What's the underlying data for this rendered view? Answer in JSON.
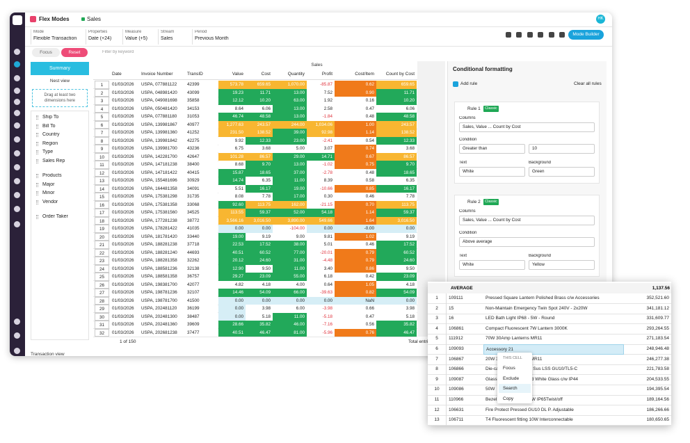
{
  "app": {
    "title": "Flex Modes",
    "view": "Sales",
    "avatar": "HK",
    "mode_builder": "Mode Builder"
  },
  "toolbar": [
    {
      "label": "Mode",
      "value": "Flexible Transaction"
    },
    {
      "label": "Properties",
      "value": "Date (+24)"
    },
    {
      "label": "Measure",
      "value": "Value (+5)"
    },
    {
      "label": "Stream",
      "value": "Sales"
    },
    {
      "label": "Period",
      "value": "Previous Month"
    }
  ],
  "filters": {
    "focus": "Focus",
    "reset": "Reset",
    "search_placeholder": "Filter by keyword"
  },
  "left_panel": {
    "summary": "Summary",
    "nest_view": "Nest view",
    "drop_hint": "Drag at least two dimensions here",
    "groups": [
      [
        "Ship To",
        "Bill To",
        "Country",
        "Region",
        "Type",
        "Sales Rep"
      ],
      [
        "Products",
        "Major",
        "Minor",
        "Vendor"
      ],
      [
        "Order Taker"
      ]
    ],
    "footer_tab": "Transaction view"
  },
  "grid": {
    "group_header": "Sales",
    "columns": [
      "Date",
      "Invoice Number",
      "TransID",
      "Value",
      "Cost",
      "Quantity",
      "Profit",
      "Cost/Item",
      "Count by Cost"
    ],
    "rows": [
      {
        "cells": [
          "1",
          "01/03/2026",
          "USPA, 077881122",
          "42399",
          "573.78",
          "659.65",
          "1,070.00",
          "-85.87",
          "0.62",
          "659.65"
        ],
        "colors": [
          "#f8b631",
          "#f8b631",
          "#f8b631",
          "#ffffff",
          "#f07a1a",
          "#f8b631"
        ]
      },
      {
        "cells": [
          "2",
          "01/03/2026",
          "USPA, 048981420",
          "43099",
          "19.23",
          "11.71",
          "13.00",
          "7.52",
          "0.90",
          "11.71"
        ],
        "colors": [
          "#22a95a",
          "#22a95a",
          "#22a95a",
          "#ffffff",
          "#f07a1a",
          "#22a95a"
        ]
      },
      {
        "cells": [
          "3",
          "01/03/2026",
          "USPA, 049081698",
          "35858",
          "12.12",
          "10.20",
          "63.00",
          "1.92",
          "0.16",
          "10.20"
        ],
        "colors": [
          "#22a95a",
          "#22a95a",
          "#22a95a",
          "#ffffff",
          "#ffffff",
          "#22a95a"
        ]
      },
      {
        "cells": [
          "4",
          "01/03/2026",
          "USPA, 050481420",
          "34153",
          "8.64",
          "6.06",
          "13.00",
          "2.58",
          "0.47",
          "6.06"
        ],
        "colors": [
          "#ffffff",
          "#ffffff",
          "#22a95a",
          "#ffffff",
          "#ffffff",
          "#ffffff"
        ]
      },
      {
        "cells": [
          "5",
          "01/03/2026",
          "USPA, 077881180",
          "31053",
          "46.74",
          "48.58",
          "13.00",
          "-1.84",
          "0.48",
          "48.58"
        ],
        "colors": [
          "#22a95a",
          "#22a95a",
          "#22a95a",
          "#ffffff",
          "#ffffff",
          "#22a95a"
        ]
      },
      {
        "cells": [
          "6",
          "01/03/2026",
          "USPA, 139981867",
          "40977",
          "1,277.63",
          "243.57",
          "244.00",
          "1,034.06",
          "1.00",
          "243.57"
        ],
        "colors": [
          "#f8b631",
          "#f8b631",
          "#f8b631",
          "#f8b631",
          "#f07a1a",
          "#f8b631"
        ]
      },
      {
        "cells": [
          "7",
          "01/03/2026",
          "USPA, 139981360",
          "41252",
          "231.50",
          "138.52",
          "39.00",
          "92.98",
          "1.14",
          "138.52"
        ],
        "colors": [
          "#f8b631",
          "#f8b631",
          "#22a95a",
          "#f8b631",
          "#f07a1a",
          "#f8b631"
        ]
      },
      {
        "cells": [
          "8",
          "01/03/2026",
          "USPA, 139981842",
          "42275",
          "9.92",
          "12.33",
          "23.00",
          "-2.41",
          "0.54",
          "12.33"
        ],
        "colors": [
          "#ffffff",
          "#22a95a",
          "#22a95a",
          "#ffffff",
          "#ffffff",
          "#22a95a"
        ]
      },
      {
        "cells": [
          "9",
          "01/03/2026",
          "USPA, 139981700",
          "43236",
          "6.75",
          "3.68",
          "5.00",
          "3.07",
          "0.74",
          "3.68"
        ],
        "colors": [
          "#ffffff",
          "#ffffff",
          "#ffffff",
          "#ffffff",
          "#f07a1a",
          "#ffffff"
        ]
      },
      {
        "cells": [
          "10",
          "01/03/2026",
          "USPA, 142281700",
          "42647",
          "101.28",
          "86.57",
          "29.00",
          "14.71",
          "0.67",
          "86.57"
        ],
        "colors": [
          "#f8b631",
          "#f8b631",
          "#22a95a",
          "#22a95a",
          "#f07a1a",
          "#f8b631"
        ]
      },
      {
        "cells": [
          "11",
          "01/03/2026",
          "USPA, 147181238",
          "38400",
          "8.68",
          "9.70",
          "13.00",
          "-1.02",
          "0.75",
          "9.70"
        ],
        "colors": [
          "#ffffff",
          "#22a95a",
          "#22a95a",
          "#ffffff",
          "#f07a1a",
          "#22a95a"
        ]
      },
      {
        "cells": [
          "12",
          "01/03/2026",
          "USPA, 147181422",
          "40415",
          "15.87",
          "18.65",
          "37.00",
          "-2.78",
          "0.48",
          "18.65"
        ],
        "colors": [
          "#22a95a",
          "#22a95a",
          "#22a95a",
          "#ffffff",
          "#ffffff",
          "#22a95a"
        ]
      },
      {
        "cells": [
          "13",
          "01/03/2026",
          "USPA, 155481696",
          "30929",
          "14.74",
          "6.35",
          "11.00",
          "8.39",
          "0.58",
          "6.35"
        ],
        "colors": [
          "#22a95a",
          "#ffffff",
          "#22a95a",
          "#ffffff",
          "#ffffff",
          "#ffffff"
        ]
      },
      {
        "cells": [
          "14",
          "01/03/2026",
          "USPA, 164481358",
          "34091",
          "5.51",
          "16.17",
          "19.00",
          "-10.66",
          "0.85",
          "16.17"
        ],
        "colors": [
          "#ffffff",
          "#22a95a",
          "#22a95a",
          "#ffffff",
          "#f07a1a",
          "#22a95a"
        ]
      },
      {
        "cells": [
          "15",
          "01/03/2026",
          "USPA, 175381298",
          "31735",
          "8.08",
          "7.78",
          "17.00",
          "0.30",
          "0.46",
          "7.78"
        ],
        "colors": [
          "#ffffff",
          "#ffffff",
          "#22a95a",
          "#ffffff",
          "#ffffff",
          "#ffffff"
        ]
      },
      {
        "cells": [
          "16",
          "01/03/2026",
          "USPA, 175381358",
          "33068",
          "92.60",
          "113.75",
          "162.00",
          "-21.15",
          "0.70",
          "113.75"
        ],
        "colors": [
          "#22a95a",
          "#f8b631",
          "#f8b631",
          "#ffffff",
          "#f07a1a",
          "#f8b631"
        ]
      },
      {
        "cells": [
          "17",
          "01/03/2026",
          "USPA, 175381560",
          "34525",
          "113.55",
          "59.37",
          "52.00",
          "54.18",
          "1.14",
          "59.37"
        ],
        "colors": [
          "#f8b631",
          "#22a95a",
          "#22a95a",
          "#22a95a",
          "#f07a1a",
          "#22a95a"
        ]
      },
      {
        "cells": [
          "18",
          "01/03/2026",
          "USPA, 177281238",
          "38772",
          "3,566.16",
          "3,016.50",
          "3,890.00",
          "549.66",
          "1.64",
          "3,016.50"
        ],
        "colors": [
          "#f8b631",
          "#f8b631",
          "#f8b631",
          "#f8b631",
          "#f07a1a",
          "#f8b631"
        ]
      },
      {
        "cells": [
          "19",
          "01/03/2026",
          "USPA, 178281422",
          "41035",
          "0.00",
          "0.00",
          "-104.00",
          "0.00",
          "-0.00",
          "0.00"
        ],
        "colors": [
          "#d6eef6",
          "#d6eef6",
          "#ffffff",
          "#d6eef6",
          "#d6eef6",
          "#d6eef6"
        ]
      },
      {
        "cells": [
          "20",
          "01/03/2026",
          "USPA, 181781420",
          "33440",
          "19.00",
          "9.19",
          "9.00",
          "9.81",
          "1.02",
          "9.19"
        ],
        "colors": [
          "#22a95a",
          "#ffffff",
          "#ffffff",
          "#ffffff",
          "#f07a1a",
          "#ffffff"
        ]
      },
      {
        "cells": [
          "21",
          "01/03/2026",
          "USPA, 188281238",
          "37718",
          "22.53",
          "17.52",
          "38.00",
          "5.01",
          "0.46",
          "17.52"
        ],
        "colors": [
          "#22a95a",
          "#22a95a",
          "#22a95a",
          "#ffffff",
          "#ffffff",
          "#22a95a"
        ]
      },
      {
        "cells": [
          "22",
          "01/03/2026",
          "USPA, 188281240",
          "44693",
          "40.51",
          "60.52",
          "77.00",
          "-20.01",
          "0.79",
          "60.52"
        ],
        "colors": [
          "#22a95a",
          "#22a95a",
          "#22a95a",
          "#ffffff",
          "#f07a1a",
          "#22a95a"
        ]
      },
      {
        "cells": [
          "23",
          "01/03/2026",
          "USPA, 188281358",
          "32262",
          "20.12",
          "24.60",
          "31.00",
          "-4.48",
          "0.79",
          "24.60"
        ],
        "colors": [
          "#22a95a",
          "#22a95a",
          "#22a95a",
          "#ffffff",
          "#f07a1a",
          "#22a95a"
        ]
      },
      {
        "cells": [
          "24",
          "01/03/2026",
          "USPA, 188581236",
          "32138",
          "12.90",
          "9.50",
          "11.00",
          "3.40",
          "0.86",
          "9.50"
        ],
        "colors": [
          "#22a95a",
          "#ffffff",
          "#22a95a",
          "#ffffff",
          "#f07a1a",
          "#ffffff"
        ]
      },
      {
        "cells": [
          "25",
          "01/03/2026",
          "USPA, 188581358",
          "36757",
          "29.27",
          "23.09",
          "55.00",
          "6.18",
          "0.42",
          "23.09"
        ],
        "colors": [
          "#22a95a",
          "#22a95a",
          "#22a95a",
          "#ffffff",
          "#ffffff",
          "#22a95a"
        ]
      },
      {
        "cells": [
          "26",
          "01/03/2026",
          "USPA, 198381700",
          "42077",
          "4.82",
          "4.18",
          "4.00",
          "0.64",
          "1.05",
          "4.18"
        ],
        "colors": [
          "#ffffff",
          "#ffffff",
          "#ffffff",
          "#ffffff",
          "#f07a1a",
          "#ffffff"
        ]
      },
      {
        "cells": [
          "27",
          "01/03/2026",
          "USPA, 198781236",
          "32107",
          "14.46",
          "54.09",
          "66.00",
          "-39.63",
          "0.82",
          "54.09"
        ],
        "colors": [
          "#22a95a",
          "#22a95a",
          "#22a95a",
          "#ffffff",
          "#f07a1a",
          "#22a95a"
        ]
      },
      {
        "cells": [
          "28",
          "01/03/2026",
          "USPA, 198781700",
          "41500",
          "0.00",
          "0.00",
          "0.00",
          "0.00",
          "NaN",
          "0.00"
        ],
        "colors": [
          "#d6eef6",
          "#d6eef6",
          "#d6eef6",
          "#d6eef6",
          "#d6eef6",
          "#d6eef6"
        ]
      },
      {
        "cells": [
          "29",
          "01/03/2026",
          "USPA, 202481120",
          "36199",
          "0.00",
          "3.98",
          "6.00",
          "-3.98",
          "0.66",
          "3.98"
        ],
        "colors": [
          "#d6eef6",
          "#ffffff",
          "#ffffff",
          "#ffffff",
          "#ffffff",
          "#ffffff"
        ]
      },
      {
        "cells": [
          "30",
          "01/03/2026",
          "USPA, 202481300",
          "38487",
          "0.00",
          "5.18",
          "11.00",
          "-5.18",
          "0.47",
          "5.18"
        ],
        "colors": [
          "#d6eef6",
          "#ffffff",
          "#22a95a",
          "#ffffff",
          "#ffffff",
          "#ffffff"
        ]
      },
      {
        "cells": [
          "31",
          "01/03/2026",
          "USPA, 202481360",
          "39609",
          "28.66",
          "35.82",
          "46.00",
          "-7.16",
          "0.56",
          "35.82"
        ],
        "colors": [
          "#22a95a",
          "#22a95a",
          "#22a95a",
          "#ffffff",
          "#ffffff",
          "#22a95a"
        ]
      },
      {
        "cells": [
          "32",
          "01/03/2026",
          "USPA, 202681238",
          "37477",
          "40.51",
          "46.47",
          "81.00",
          "-5.96",
          "0.76",
          "46.47"
        ],
        "colors": [
          "#22a95a",
          "#22a95a",
          "#22a95a",
          "#ffffff",
          "#f07a1a",
          "#22a95a"
        ]
      }
    ],
    "pagination": "1 of 150",
    "total": "Total entries"
  },
  "formatting": {
    "title": "Conditional formatting",
    "add_rule": "Add rule",
    "clear": "Clear all rules",
    "rules": [
      {
        "name": "Rule 1",
        "badge": "Classic",
        "columns_label": "Columns",
        "columns": "Sales, Value ... Count by Cost",
        "condition_label": "Condition",
        "condition": "Greater than",
        "condition_value": "10",
        "text_label": "Text",
        "text": "White",
        "background_label": "Background",
        "background": "Green"
      },
      {
        "name": "Rule 2",
        "badge": "Classic",
        "columns_label": "Columns",
        "columns": "Sales, Value ... Count by Cost",
        "condition_label": "Condition",
        "condition": "Above average",
        "text_label": "Text",
        "text": "White",
        "background_label": "Background",
        "background": "Yellow"
      }
    ]
  },
  "popup": {
    "header": [
      "AVERAGE",
      "1,137.56"
    ],
    "rows": [
      {
        "cells": [
          "1",
          "109111",
          "Pressed Square Lantern Polished Brass c/w Accessories",
          "352,521.60"
        ]
      },
      {
        "cells": [
          "2",
          "15",
          "Non-Maintain Emergency Twin Spot 240V - 2x20W",
          "341,181.12"
        ]
      },
      {
        "cells": [
          "3",
          "16",
          "LED Bath Light IP68 - 5W - Round",
          "331,609.77"
        ]
      },
      {
        "cells": [
          "4",
          "106861",
          "Compact Fluorescent 7W Lantern 3000K",
          "293,264.55"
        ]
      },
      {
        "cells": [
          "5",
          "111912",
          "70W 30Amp Lanterns MR11",
          "271,183.54"
        ]
      },
      {
        "cells": [
          "6",
          "109093",
          "Accessory 21",
          "248,946.48"
        ],
        "selected": true
      },
      {
        "cells": [
          "7",
          "106867",
          "20W 30Amp Lanterns MR11",
          "246,277.38"
        ]
      },
      {
        "cells": [
          "8",
          "106866",
          "Die-cast Pendant/Fluor Sus LSS GU10/TL5-C",
          "221,783.58"
        ]
      },
      {
        "cells": [
          "9",
          "109087",
          "Glass Bulkhead Frosted White Glass c/w IP44",
          "204,533.55"
        ]
      },
      {
        "cells": [
          "10",
          "109086",
          "50W",
          "194,395.54"
        ]
      },
      {
        "cells": [
          "11",
          "110966",
          "Bezel Frosted Glass MW IP65Twist/off",
          "189,164.56"
        ]
      },
      {
        "cells": [
          "12",
          "106631",
          "Fire Protect Pressed GU10 DL P. Adjustable",
          "186,266.66"
        ]
      },
      {
        "cells": [
          "13",
          "106711",
          "T4 Fluorescent fitting 10W Interconnectable",
          "180,650.65"
        ]
      }
    ],
    "menu": {
      "title": "THIS CELL",
      "items": [
        "Focus",
        "Exclude",
        "Search",
        "Copy"
      ]
    }
  }
}
